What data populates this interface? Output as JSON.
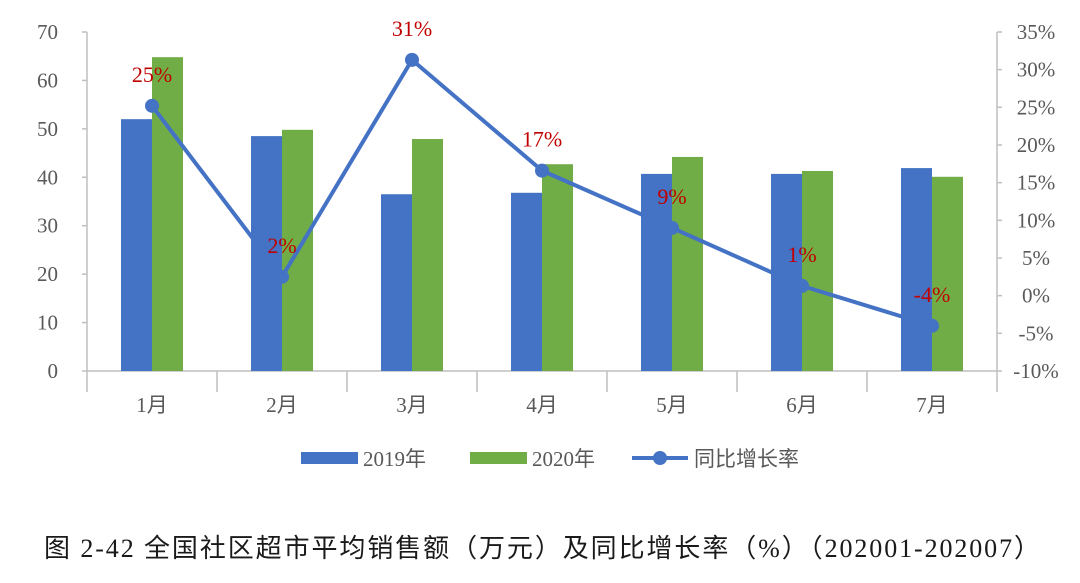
{
  "chart_data": {
    "type": "bar",
    "categories": [
      "1月",
      "2月",
      "3月",
      "4月",
      "5月",
      "6月",
      "7月"
    ],
    "series": [
      {
        "name": "2019年",
        "type": "bar",
        "axis": "left",
        "color": "#4472C4",
        "values": [
          52.0,
          48.5,
          36.5,
          36.8,
          40.7,
          40.7,
          41.9
        ]
      },
      {
        "name": "2020年",
        "type": "bar",
        "axis": "left",
        "color": "#70AD47",
        "values": [
          64.8,
          49.8,
          47.9,
          42.7,
          44.2,
          41.3,
          40.1
        ]
      },
      {
        "name": "同比增长率",
        "type": "line",
        "axis": "right",
        "color": "#4472C4",
        "values": [
          25.2,
          2.5,
          31.3,
          16.6,
          9.0,
          1.3,
          -4.0
        ],
        "data_labels": [
          "25%",
          "2%",
          "31%",
          "17%",
          "9%",
          "1%",
          "-4%"
        ]
      }
    ],
    "data_label_color": "#C00000",
    "y_left": {
      "range": [
        0,
        70
      ],
      "ticks": [
        "0",
        "10",
        "20",
        "30",
        "40",
        "50",
        "60",
        "70"
      ]
    },
    "y_right": {
      "range": [
        -10,
        35
      ],
      "ticks": [
        "-10%",
        "-5%",
        "0%",
        "5%",
        "10%",
        "15%",
        "20%",
        "25%",
        "30%",
        "35%"
      ]
    },
    "grid": false,
    "legend": "bottom",
    "caption": "图 2-42 全国社区超市平均销售额（万元）及同比增长率（%）（202001-202007）"
  }
}
